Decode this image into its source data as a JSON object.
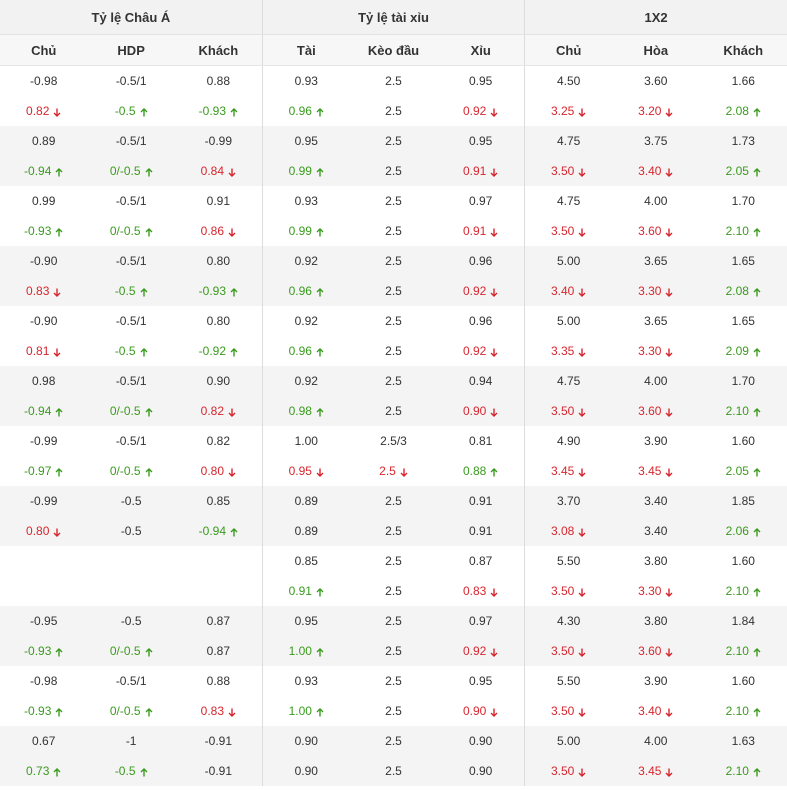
{
  "groups": [
    {
      "label": "Tỷ lệ Châu Á"
    },
    {
      "label": "Tỷ lệ tài xỉu"
    },
    {
      "label": "1X2"
    }
  ],
  "columns": [
    "Chủ",
    "HDP",
    "Khách",
    "Tài",
    "Kèo đầu",
    "Xỉu",
    "Chủ",
    "Hòa",
    "Khách"
  ],
  "colors": {
    "up": "#3a9b1e",
    "down": "#d7262e",
    "header_bg": "#f2f2f2",
    "row_shade": "#f4f4f4"
  },
  "icons": {
    "up": "arrow-up-icon",
    "down": "arrow-down-icon"
  },
  "blocks": [
    {
      "rows": [
        [
          {
            "v": "-0.98"
          },
          {
            "v": "-0.5/1"
          },
          {
            "v": "0.88"
          },
          {
            "v": "0.93"
          },
          {
            "v": "2.5"
          },
          {
            "v": "0.95"
          },
          {
            "v": "4.50"
          },
          {
            "v": "3.60"
          },
          {
            "v": "1.66"
          }
        ],
        [
          {
            "v": "0.82",
            "d": "down"
          },
          {
            "v": "-0.5",
            "d": "up"
          },
          {
            "v": "-0.93",
            "d": "up"
          },
          {
            "v": "0.96",
            "d": "up"
          },
          {
            "v": "2.5"
          },
          {
            "v": "0.92",
            "d": "down"
          },
          {
            "v": "3.25",
            "d": "down"
          },
          {
            "v": "3.20",
            "d": "down"
          },
          {
            "v": "2.08",
            "d": "up"
          }
        ]
      ]
    },
    {
      "rows": [
        [
          {
            "v": "0.89"
          },
          {
            "v": "-0.5/1"
          },
          {
            "v": "-0.99"
          },
          {
            "v": "0.95"
          },
          {
            "v": "2.5"
          },
          {
            "v": "0.95"
          },
          {
            "v": "4.75"
          },
          {
            "v": "3.75"
          },
          {
            "v": "1.73"
          }
        ],
        [
          {
            "v": "-0.94",
            "d": "up"
          },
          {
            "v": "0/-0.5",
            "d": "up"
          },
          {
            "v": "0.84",
            "d": "down"
          },
          {
            "v": "0.99",
            "d": "up"
          },
          {
            "v": "2.5"
          },
          {
            "v": "0.91",
            "d": "down"
          },
          {
            "v": "3.50",
            "d": "down"
          },
          {
            "v": "3.40",
            "d": "down"
          },
          {
            "v": "2.05",
            "d": "up"
          }
        ]
      ]
    },
    {
      "rows": [
        [
          {
            "v": "0.99"
          },
          {
            "v": "-0.5/1"
          },
          {
            "v": "0.91"
          },
          {
            "v": "0.93"
          },
          {
            "v": "2.5"
          },
          {
            "v": "0.97"
          },
          {
            "v": "4.75"
          },
          {
            "v": "4.00"
          },
          {
            "v": "1.70"
          }
        ],
        [
          {
            "v": "-0.93",
            "d": "up"
          },
          {
            "v": "0/-0.5",
            "d": "up"
          },
          {
            "v": "0.86",
            "d": "down"
          },
          {
            "v": "0.99",
            "d": "up"
          },
          {
            "v": "2.5"
          },
          {
            "v": "0.91",
            "d": "down"
          },
          {
            "v": "3.50",
            "d": "down"
          },
          {
            "v": "3.60",
            "d": "down"
          },
          {
            "v": "2.10",
            "d": "up"
          }
        ]
      ]
    },
    {
      "rows": [
        [
          {
            "v": "-0.90"
          },
          {
            "v": "-0.5/1"
          },
          {
            "v": "0.80"
          },
          {
            "v": "0.92"
          },
          {
            "v": "2.5"
          },
          {
            "v": "0.96"
          },
          {
            "v": "5.00"
          },
          {
            "v": "3.65"
          },
          {
            "v": "1.65"
          }
        ],
        [
          {
            "v": "0.83",
            "d": "down"
          },
          {
            "v": "-0.5",
            "d": "up"
          },
          {
            "v": "-0.93",
            "d": "up"
          },
          {
            "v": "0.96",
            "d": "up"
          },
          {
            "v": "2.5"
          },
          {
            "v": "0.92",
            "d": "down"
          },
          {
            "v": "3.40",
            "d": "down"
          },
          {
            "v": "3.30",
            "d": "down"
          },
          {
            "v": "2.08",
            "d": "up"
          }
        ]
      ]
    },
    {
      "rows": [
        [
          {
            "v": "-0.90"
          },
          {
            "v": "-0.5/1"
          },
          {
            "v": "0.80"
          },
          {
            "v": "0.92"
          },
          {
            "v": "2.5"
          },
          {
            "v": "0.96"
          },
          {
            "v": "5.00"
          },
          {
            "v": "3.65"
          },
          {
            "v": "1.65"
          }
        ],
        [
          {
            "v": "0.81",
            "d": "down"
          },
          {
            "v": "-0.5",
            "d": "up"
          },
          {
            "v": "-0.92",
            "d": "up"
          },
          {
            "v": "0.96",
            "d": "up"
          },
          {
            "v": "2.5"
          },
          {
            "v": "0.92",
            "d": "down"
          },
          {
            "v": "3.35",
            "d": "down"
          },
          {
            "v": "3.30",
            "d": "down"
          },
          {
            "v": "2.09",
            "d": "up"
          }
        ]
      ]
    },
    {
      "rows": [
        [
          {
            "v": "0.98"
          },
          {
            "v": "-0.5/1"
          },
          {
            "v": "0.90"
          },
          {
            "v": "0.92"
          },
          {
            "v": "2.5"
          },
          {
            "v": "0.94"
          },
          {
            "v": "4.75"
          },
          {
            "v": "4.00"
          },
          {
            "v": "1.70"
          }
        ],
        [
          {
            "v": "-0.94",
            "d": "up"
          },
          {
            "v": "0/-0.5",
            "d": "up"
          },
          {
            "v": "0.82",
            "d": "down"
          },
          {
            "v": "0.98",
            "d": "up"
          },
          {
            "v": "2.5"
          },
          {
            "v": "0.90",
            "d": "down"
          },
          {
            "v": "3.50",
            "d": "down"
          },
          {
            "v": "3.60",
            "d": "down"
          },
          {
            "v": "2.10",
            "d": "up"
          }
        ]
      ]
    },
    {
      "rows": [
        [
          {
            "v": "-0.99"
          },
          {
            "v": "-0.5/1"
          },
          {
            "v": "0.82"
          },
          {
            "v": "1.00"
          },
          {
            "v": "2.5/3"
          },
          {
            "v": "0.81"
          },
          {
            "v": "4.90"
          },
          {
            "v": "3.90"
          },
          {
            "v": "1.60"
          }
        ],
        [
          {
            "v": "-0.97",
            "d": "up"
          },
          {
            "v": "0/-0.5",
            "d": "up"
          },
          {
            "v": "0.80",
            "d": "down"
          },
          {
            "v": "0.95",
            "d": "down"
          },
          {
            "v": "2.5",
            "d": "down"
          },
          {
            "v": "0.88",
            "d": "up"
          },
          {
            "v": "3.45",
            "d": "down"
          },
          {
            "v": "3.45",
            "d": "down"
          },
          {
            "v": "2.05",
            "d": "up"
          }
        ]
      ]
    },
    {
      "rows": [
        [
          {
            "v": "-0.99"
          },
          {
            "v": "-0.5"
          },
          {
            "v": "0.85"
          },
          {
            "v": "0.89"
          },
          {
            "v": "2.5"
          },
          {
            "v": "0.91"
          },
          {
            "v": "3.70"
          },
          {
            "v": "3.40"
          },
          {
            "v": "1.85"
          }
        ],
        [
          {
            "v": "0.80",
            "d": "down"
          },
          {
            "v": "-0.5"
          },
          {
            "v": "-0.94",
            "d": "up"
          },
          {
            "v": "0.89"
          },
          {
            "v": "2.5"
          },
          {
            "v": "0.91"
          },
          {
            "v": "3.08",
            "d": "down"
          },
          {
            "v": "3.40"
          },
          {
            "v": "2.06",
            "d": "up"
          }
        ]
      ]
    },
    {
      "rows": [
        [
          {
            "v": ""
          },
          {
            "v": ""
          },
          {
            "v": ""
          },
          {
            "v": "0.85"
          },
          {
            "v": "2.5"
          },
          {
            "v": "0.87"
          },
          {
            "v": "5.50"
          },
          {
            "v": "3.80"
          },
          {
            "v": "1.60"
          }
        ],
        [
          {
            "v": ""
          },
          {
            "v": ""
          },
          {
            "v": ""
          },
          {
            "v": "0.91",
            "d": "up"
          },
          {
            "v": "2.5"
          },
          {
            "v": "0.83",
            "d": "down"
          },
          {
            "v": "3.50",
            "d": "down"
          },
          {
            "v": "3.30",
            "d": "down"
          },
          {
            "v": "2.10",
            "d": "up"
          }
        ]
      ]
    },
    {
      "rows": [
        [
          {
            "v": "-0.95"
          },
          {
            "v": "-0.5"
          },
          {
            "v": "0.87"
          },
          {
            "v": "0.95"
          },
          {
            "v": "2.5"
          },
          {
            "v": "0.97"
          },
          {
            "v": "4.30"
          },
          {
            "v": "3.80"
          },
          {
            "v": "1.84"
          }
        ],
        [
          {
            "v": "-0.93",
            "d": "up"
          },
          {
            "v": "0/-0.5",
            "d": "up"
          },
          {
            "v": "0.87"
          },
          {
            "v": "1.00",
            "d": "up"
          },
          {
            "v": "2.5"
          },
          {
            "v": "0.92",
            "d": "down"
          },
          {
            "v": "3.50",
            "d": "down"
          },
          {
            "v": "3.60",
            "d": "down"
          },
          {
            "v": "2.10",
            "d": "up"
          }
        ]
      ]
    },
    {
      "rows": [
        [
          {
            "v": "-0.98"
          },
          {
            "v": "-0.5/1"
          },
          {
            "v": "0.88"
          },
          {
            "v": "0.93"
          },
          {
            "v": "2.5"
          },
          {
            "v": "0.95"
          },
          {
            "v": "5.50"
          },
          {
            "v": "3.90"
          },
          {
            "v": "1.60"
          }
        ],
        [
          {
            "v": "-0.93",
            "d": "up"
          },
          {
            "v": "0/-0.5",
            "d": "up"
          },
          {
            "v": "0.83",
            "d": "down"
          },
          {
            "v": "1.00",
            "d": "up"
          },
          {
            "v": "2.5"
          },
          {
            "v": "0.90",
            "d": "down"
          },
          {
            "v": "3.50",
            "d": "down"
          },
          {
            "v": "3.40",
            "d": "down"
          },
          {
            "v": "2.10",
            "d": "up"
          }
        ]
      ]
    },
    {
      "rows": [
        [
          {
            "v": "0.67"
          },
          {
            "v": "-1"
          },
          {
            "v": "-0.91"
          },
          {
            "v": "0.90"
          },
          {
            "v": "2.5"
          },
          {
            "v": "0.90"
          },
          {
            "v": "5.00"
          },
          {
            "v": "4.00"
          },
          {
            "v": "1.63"
          }
        ],
        [
          {
            "v": "0.73",
            "d": "up"
          },
          {
            "v": "-0.5",
            "d": "up"
          },
          {
            "v": "-0.91"
          },
          {
            "v": "0.90"
          },
          {
            "v": "2.5"
          },
          {
            "v": "0.90"
          },
          {
            "v": "3.50",
            "d": "down"
          },
          {
            "v": "3.45",
            "d": "down"
          },
          {
            "v": "2.10",
            "d": "up"
          }
        ]
      ]
    }
  ]
}
